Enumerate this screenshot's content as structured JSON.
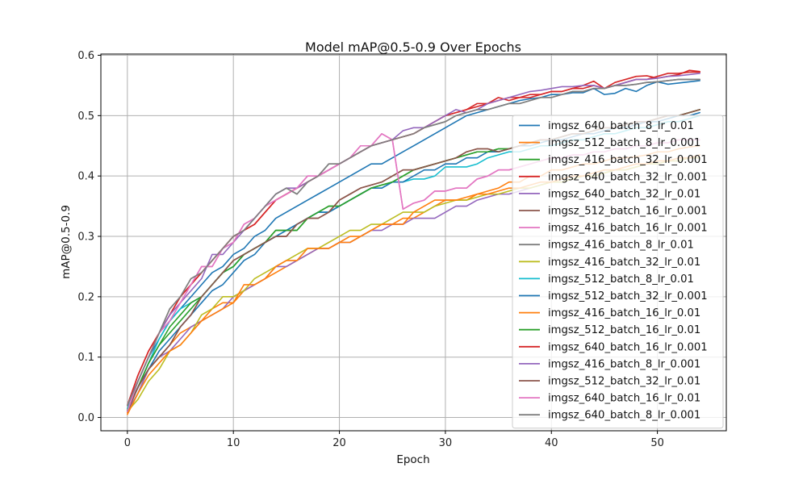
{
  "chart_data": {
    "type": "line",
    "title": "Model mAP@0.5-0.9 Over Epochs",
    "xlabel": "Epoch",
    "ylabel": "mAP@0.5-0.9",
    "xlim": [
      -2.5,
      56.5
    ],
    "ylim": [
      -0.022,
      0.602
    ],
    "xticks": [
      0,
      10,
      20,
      30,
      40,
      50
    ],
    "yticks": [
      0.0,
      0.1,
      0.2,
      0.3,
      0.4,
      0.5,
      0.6
    ],
    "xtick_labels": [
      "0",
      "10",
      "20",
      "30",
      "40",
      "50"
    ],
    "ytick_labels": [
      "0.0",
      "0.1",
      "0.2",
      "0.3",
      "0.4",
      "0.5",
      "0.6"
    ],
    "grid": true,
    "legend_position": "right",
    "x": [
      0,
      1,
      2,
      3,
      4,
      5,
      6,
      7,
      8,
      9,
      10,
      11,
      12,
      13,
      14,
      15,
      16,
      17,
      18,
      19,
      20,
      21,
      22,
      23,
      24,
      25,
      26,
      27,
      28,
      29,
      30,
      31,
      32,
      33,
      34,
      35,
      36,
      37,
      38,
      39,
      40,
      41,
      42,
      43,
      44,
      45,
      46,
      47,
      48,
      49,
      50,
      51,
      52,
      53,
      54
    ],
    "series": [
      {
        "name": "imgsz_640_batch_8_lr_0.01",
        "color": "#1f77b4",
        "values": [
          0.01,
          0.06,
          0.1,
          0.13,
          0.16,
          0.18,
          0.2,
          0.22,
          0.24,
          0.25,
          0.27,
          0.28,
          0.3,
          0.31,
          0.33,
          0.34,
          0.35,
          0.36,
          0.37,
          0.38,
          0.39,
          0.4,
          0.41,
          0.42,
          0.42,
          0.43,
          0.44,
          0.45,
          0.46,
          0.47,
          0.48,
          0.49,
          0.5,
          0.505,
          0.51,
          0.515,
          0.52,
          0.525,
          0.528,
          0.53,
          0.535,
          0.535,
          0.538,
          0.538,
          0.545,
          0.535,
          0.537,
          0.545,
          0.54,
          0.55,
          0.556,
          0.552,
          0.554,
          0.556,
          0.558
        ]
      },
      {
        "name": "imgsz_512_batch_8_lr_0.001",
        "color": "#ff7f0e",
        "values": [
          0.008,
          0.04,
          0.08,
          0.1,
          0.12,
          0.14,
          0.15,
          0.16,
          0.18,
          0.19,
          0.19,
          0.21,
          0.22,
          0.23,
          0.24,
          0.25,
          0.26,
          0.27,
          0.28,
          0.28,
          0.29,
          0.3,
          0.3,
          0.31,
          0.32,
          0.32,
          0.33,
          0.33,
          0.34,
          0.35,
          0.36,
          0.36,
          0.36,
          0.37,
          0.375,
          0.38,
          0.39,
          0.39,
          0.4,
          0.4,
          0.41,
          0.41,
          0.415,
          0.42,
          0.42,
          0.425,
          0.43,
          0.43,
          0.432,
          0.435,
          0.44,
          0.44,
          0.445,
          0.448,
          0.45
        ]
      },
      {
        "name": "imgsz_416_batch_32_lr_0.001",
        "color": "#2ca02c",
        "values": [
          0.012,
          0.05,
          0.09,
          0.12,
          0.14,
          0.16,
          0.18,
          0.2,
          0.22,
          0.24,
          0.25,
          0.27,
          0.28,
          0.29,
          0.31,
          0.31,
          0.31,
          0.33,
          0.34,
          0.35,
          0.35,
          0.36,
          0.37,
          0.38,
          0.385,
          0.39,
          0.4,
          0.41,
          0.415,
          0.42,
          0.425,
          0.43,
          0.435,
          0.44,
          0.44,
          0.445,
          0.445,
          0.45,
          0.455,
          0.46,
          0.46,
          0.465,
          0.47,
          0.47,
          0.475,
          0.48,
          0.48,
          0.485,
          0.49,
          0.49,
          0.495,
          0.5,
          0.5,
          0.505,
          0.51
        ]
      },
      {
        "name": "imgsz_640_batch_32_lr_0.001",
        "color": "#d62728",
        "values": [
          0.02,
          0.07,
          0.11,
          0.14,
          0.17,
          0.2,
          0.22,
          0.24,
          0.26,
          0.28,
          0.3,
          0.31,
          0.32,
          0.34,
          0.36,
          0.37,
          0.38,
          0.39,
          0.4,
          0.41,
          0.42,
          0.43,
          0.44,
          0.45,
          0.455,
          0.46,
          0.465,
          0.47,
          0.48,
          0.49,
          0.5,
          0.505,
          0.51,
          0.515,
          0.52,
          0.525,
          0.53,
          0.53,
          0.535,
          0.535,
          0.54,
          0.54,
          0.545,
          0.545,
          0.55,
          0.545,
          0.55,
          0.555,
          0.56,
          0.56,
          0.565,
          0.57,
          0.57,
          0.572,
          0.572
        ]
      },
      {
        "name": "imgsz_640_batch_32_lr_0.01",
        "color": "#9467bd",
        "values": [
          0.01,
          0.04,
          0.08,
          0.1,
          0.11,
          0.13,
          0.15,
          0.16,
          0.17,
          0.18,
          0.2,
          0.21,
          0.22,
          0.23,
          0.25,
          0.25,
          0.26,
          0.27,
          0.28,
          0.28,
          0.29,
          0.29,
          0.3,
          0.31,
          0.31,
          0.32,
          0.32,
          0.33,
          0.33,
          0.33,
          0.34,
          0.35,
          0.35,
          0.36,
          0.365,
          0.37,
          0.37,
          0.375,
          0.38,
          0.385,
          0.39,
          0.39,
          0.395,
          0.4,
          0.4,
          0.405,
          0.41,
          0.41,
          0.415,
          0.42,
          0.42,
          0.425,
          0.425,
          0.43,
          0.43
        ]
      },
      {
        "name": "imgsz_512_batch_16_lr_0.001",
        "color": "#8c564b",
        "values": [
          0.015,
          0.05,
          0.08,
          0.1,
          0.12,
          0.15,
          0.17,
          0.2,
          0.22,
          0.24,
          0.26,
          0.27,
          0.28,
          0.29,
          0.3,
          0.3,
          0.32,
          0.33,
          0.33,
          0.34,
          0.36,
          0.37,
          0.38,
          0.385,
          0.39,
          0.4,
          0.41,
          0.41,
          0.415,
          0.42,
          0.425,
          0.43,
          0.44,
          0.445,
          0.445,
          0.44,
          0.445,
          0.45,
          0.455,
          0.46,
          0.46,
          0.465,
          0.47,
          0.47,
          0.475,
          0.48,
          0.48,
          0.485,
          0.49,
          0.49,
          0.495,
          0.5,
          0.5,
          0.505,
          0.51
        ]
      },
      {
        "name": "imgsz_416_batch_16_lr_0.001",
        "color": "#e377c2",
        "values": [
          0.01,
          0.06,
          0.1,
          0.14,
          0.16,
          0.19,
          0.22,
          0.25,
          0.25,
          0.28,
          0.29,
          0.32,
          0.33,
          0.35,
          0.36,
          0.37,
          0.38,
          0.4,
          0.4,
          0.41,
          0.42,
          0.43,
          0.45,
          0.45,
          0.47,
          0.46,
          0.345,
          0.355,
          0.36,
          0.375,
          0.375,
          0.38,
          0.38,
          0.395,
          0.4,
          0.41,
          0.41,
          0.415,
          0.42,
          0.425,
          0.43,
          0.43,
          0.435,
          0.435,
          0.44,
          0.44,
          0.445,
          0.445,
          0.45,
          0.45,
          0.455,
          0.455,
          0.46,
          0.46,
          0.46
        ]
      },
      {
        "name": "imgsz_416_batch_8_lr_0.01",
        "color": "#7f7f7f",
        "values": [
          0.02,
          0.06,
          0.1,
          0.14,
          0.18,
          0.2,
          0.23,
          0.24,
          0.26,
          0.28,
          0.3,
          0.31,
          0.33,
          0.35,
          0.37,
          0.38,
          0.37,
          0.39,
          0.4,
          0.42,
          0.42,
          0.43,
          0.44,
          0.45,
          0.455,
          0.46,
          0.465,
          0.47,
          0.48,
          0.485,
          0.49,
          0.5,
          0.505,
          0.51,
          0.51,
          0.515,
          0.52,
          0.52,
          0.525,
          0.53,
          0.53,
          0.535,
          0.54,
          0.54,
          0.545,
          0.545,
          0.55,
          0.55,
          0.552,
          0.555,
          0.556,
          0.558,
          0.56,
          0.56,
          0.56
        ]
      },
      {
        "name": "imgsz_416_batch_32_lr_0.01",
        "color": "#bcbd22",
        "values": [
          0.01,
          0.03,
          0.06,
          0.08,
          0.11,
          0.12,
          0.14,
          0.17,
          0.18,
          0.2,
          0.2,
          0.21,
          0.23,
          0.24,
          0.25,
          0.26,
          0.27,
          0.28,
          0.28,
          0.29,
          0.3,
          0.31,
          0.31,
          0.32,
          0.32,
          0.33,
          0.34,
          0.34,
          0.34,
          0.35,
          0.355,
          0.36,
          0.36,
          0.365,
          0.37,
          0.37,
          0.375,
          0.38,
          0.38,
          0.385,
          0.39,
          0.39,
          0.395,
          0.4,
          0.4,
          0.405,
          0.41,
          0.41,
          0.415,
          0.42,
          0.42,
          0.425,
          0.425,
          0.43,
          0.43
        ]
      },
      {
        "name": "imgsz_512_batch_8_lr_0.01",
        "color": "#17becf",
        "values": [
          0.015,
          0.05,
          0.09,
          0.13,
          0.16,
          0.18,
          0.19,
          0.2,
          0.22,
          0.24,
          0.25,
          0.27,
          0.28,
          0.29,
          0.3,
          0.31,
          0.32,
          0.33,
          0.34,
          0.34,
          0.35,
          0.36,
          0.37,
          0.38,
          0.38,
          0.39,
          0.39,
          0.395,
          0.395,
          0.4,
          0.415,
          0.415,
          0.415,
          0.42,
          0.43,
          0.435,
          0.44,
          0.44,
          0.445,
          0.45,
          0.45,
          0.455,
          0.46,
          0.46,
          0.465,
          0.47,
          0.47,
          0.475,
          0.48,
          0.48,
          0.485,
          0.49,
          0.49,
          0.495,
          0.5
        ]
      },
      {
        "name": "imgsz_512_batch_32_lr_0.001",
        "color": "#1f77b4",
        "values": [
          0.01,
          0.05,
          0.08,
          0.11,
          0.13,
          0.15,
          0.17,
          0.19,
          0.21,
          0.22,
          0.24,
          0.26,
          0.27,
          0.29,
          0.3,
          0.31,
          0.32,
          0.33,
          0.34,
          0.34,
          0.35,
          0.36,
          0.37,
          0.38,
          0.38,
          0.39,
          0.39,
          0.4,
          0.41,
          0.41,
          0.42,
          0.42,
          0.43,
          0.43,
          0.44,
          0.44,
          0.445,
          0.45,
          0.45,
          0.455,
          0.46,
          0.46,
          0.465,
          0.47,
          0.47,
          0.475,
          0.48,
          0.48,
          0.485,
          0.49,
          0.49,
          0.495,
          0.5,
          0.5,
          0.505
        ]
      },
      {
        "name": "imgsz_416_batch_16_lr_0.01",
        "color": "#ff7f0e",
        "values": [
          0.005,
          0.04,
          0.07,
          0.09,
          0.11,
          0.12,
          0.14,
          0.16,
          0.17,
          0.18,
          0.19,
          0.22,
          0.22,
          0.23,
          0.25,
          0.26,
          0.26,
          0.28,
          0.28,
          0.28,
          0.29,
          0.29,
          0.3,
          0.31,
          0.32,
          0.32,
          0.32,
          0.34,
          0.35,
          0.36,
          0.36,
          0.36,
          0.365,
          0.37,
          0.37,
          0.375,
          0.38,
          0.38,
          0.385,
          0.39,
          0.39,
          0.395,
          0.4,
          0.4,
          0.405,
          0.41,
          0.41,
          0.415,
          0.42,
          0.42,
          0.425,
          0.425,
          0.43,
          0.43,
          0.435
        ]
      },
      {
        "name": "imgsz_512_batch_16_lr_0.01",
        "color": "#2ca02c",
        "values": [
          0.012,
          0.05,
          0.09,
          0.12,
          0.15,
          0.17,
          0.19,
          0.2,
          0.22,
          0.24,
          0.25,
          0.27,
          0.28,
          0.29,
          0.31,
          0.31,
          0.31,
          0.33,
          0.34,
          0.35,
          0.35,
          0.36,
          0.37,
          0.38,
          0.385,
          0.39,
          0.4,
          0.41,
          0.415,
          0.42,
          0.425,
          0.43,
          0.435,
          0.44,
          0.44,
          0.445,
          0.445,
          0.45,
          0.455,
          0.46,
          0.46,
          0.465,
          0.47,
          0.47,
          0.475,
          0.48,
          0.48,
          0.485,
          0.49,
          0.49,
          0.495,
          0.5,
          0.5,
          0.505,
          0.51
        ]
      },
      {
        "name": "imgsz_640_batch_16_lr_0.001",
        "color": "#d62728",
        "values": [
          0.02,
          0.07,
          0.11,
          0.14,
          0.17,
          0.2,
          0.22,
          0.24,
          0.26,
          0.28,
          0.3,
          0.31,
          0.32,
          0.34,
          0.36,
          0.37,
          0.38,
          0.39,
          0.4,
          0.41,
          0.42,
          0.43,
          0.44,
          0.45,
          0.455,
          0.46,
          0.465,
          0.47,
          0.48,
          0.49,
          0.5,
          0.505,
          0.51,
          0.52,
          0.52,
          0.53,
          0.525,
          0.53,
          0.53,
          0.535,
          0.54,
          0.54,
          0.545,
          0.55,
          0.557,
          0.545,
          0.555,
          0.56,
          0.565,
          0.566,
          0.562,
          0.565,
          0.568,
          0.575,
          0.573
        ]
      },
      {
        "name": "imgsz_416_batch_8_lr_0.001",
        "color": "#9467bd",
        "values": [
          0.02,
          0.06,
          0.1,
          0.14,
          0.17,
          0.19,
          0.21,
          0.23,
          0.27,
          0.27,
          0.29,
          0.31,
          0.33,
          0.35,
          0.37,
          0.38,
          0.38,
          0.39,
          0.4,
          0.41,
          0.42,
          0.43,
          0.44,
          0.45,
          0.455,
          0.46,
          0.475,
          0.48,
          0.48,
          0.49,
          0.5,
          0.51,
          0.505,
          0.51,
          0.52,
          0.525,
          0.53,
          0.535,
          0.54,
          0.542,
          0.545,
          0.548,
          0.548,
          0.55,
          0.55,
          0.545,
          0.55,
          0.555,
          0.56,
          0.56,
          0.562,
          0.565,
          0.566,
          0.568,
          0.57
        ]
      },
      {
        "name": "imgsz_512_batch_32_lr_0.01",
        "color": "#8c564b",
        "values": [
          0.01,
          0.05,
          0.08,
          0.1,
          0.12,
          0.15,
          0.17,
          0.2,
          0.22,
          0.24,
          0.26,
          0.27,
          0.28,
          0.29,
          0.3,
          0.3,
          0.32,
          0.33,
          0.33,
          0.34,
          0.36,
          0.37,
          0.38,
          0.385,
          0.39,
          0.4,
          0.41,
          0.41,
          0.415,
          0.42,
          0.425,
          0.43,
          0.44,
          0.445,
          0.445,
          0.44,
          0.445,
          0.45,
          0.455,
          0.46,
          0.46,
          0.465,
          0.47,
          0.47,
          0.475,
          0.48,
          0.48,
          0.485,
          0.49,
          0.49,
          0.495,
          0.5,
          0.5,
          0.505,
          0.51
        ]
      },
      {
        "name": "imgsz_640_batch_16_lr_0.01",
        "color": "#e377c2",
        "values": [
          0.01,
          0.06,
          0.1,
          0.14,
          0.16,
          0.19,
          0.22,
          0.25,
          0.25,
          0.28,
          0.29,
          0.32,
          0.33,
          0.35,
          0.36,
          0.37,
          0.38,
          0.4,
          0.4,
          0.41,
          0.42,
          0.43,
          0.45,
          0.45,
          0.47,
          0.46,
          0.345,
          0.355,
          0.36,
          0.375,
          0.375,
          0.38,
          0.38,
          0.395,
          0.4,
          0.41,
          0.41,
          0.415,
          0.42,
          0.425,
          0.43,
          0.43,
          0.435,
          0.435,
          0.44,
          0.44,
          0.445,
          0.445,
          0.45,
          0.45,
          0.455,
          0.455,
          0.46,
          0.46,
          0.46
        ]
      },
      {
        "name": "imgsz_640_batch_8_lr_0.001",
        "color": "#7f7f7f",
        "values": [
          0.02,
          0.06,
          0.1,
          0.14,
          0.18,
          0.2,
          0.23,
          0.24,
          0.26,
          0.28,
          0.3,
          0.31,
          0.33,
          0.35,
          0.37,
          0.38,
          0.37,
          0.39,
          0.4,
          0.42,
          0.42,
          0.43,
          0.44,
          0.45,
          0.455,
          0.46,
          0.465,
          0.47,
          0.48,
          0.485,
          0.49,
          0.5,
          0.505,
          0.51,
          0.51,
          0.515,
          0.52,
          0.52,
          0.525,
          0.53,
          0.53,
          0.535,
          0.54,
          0.54,
          0.545,
          0.545,
          0.55,
          0.55,
          0.552,
          0.555,
          0.556,
          0.558,
          0.56,
          0.56,
          0.56
        ]
      }
    ]
  }
}
